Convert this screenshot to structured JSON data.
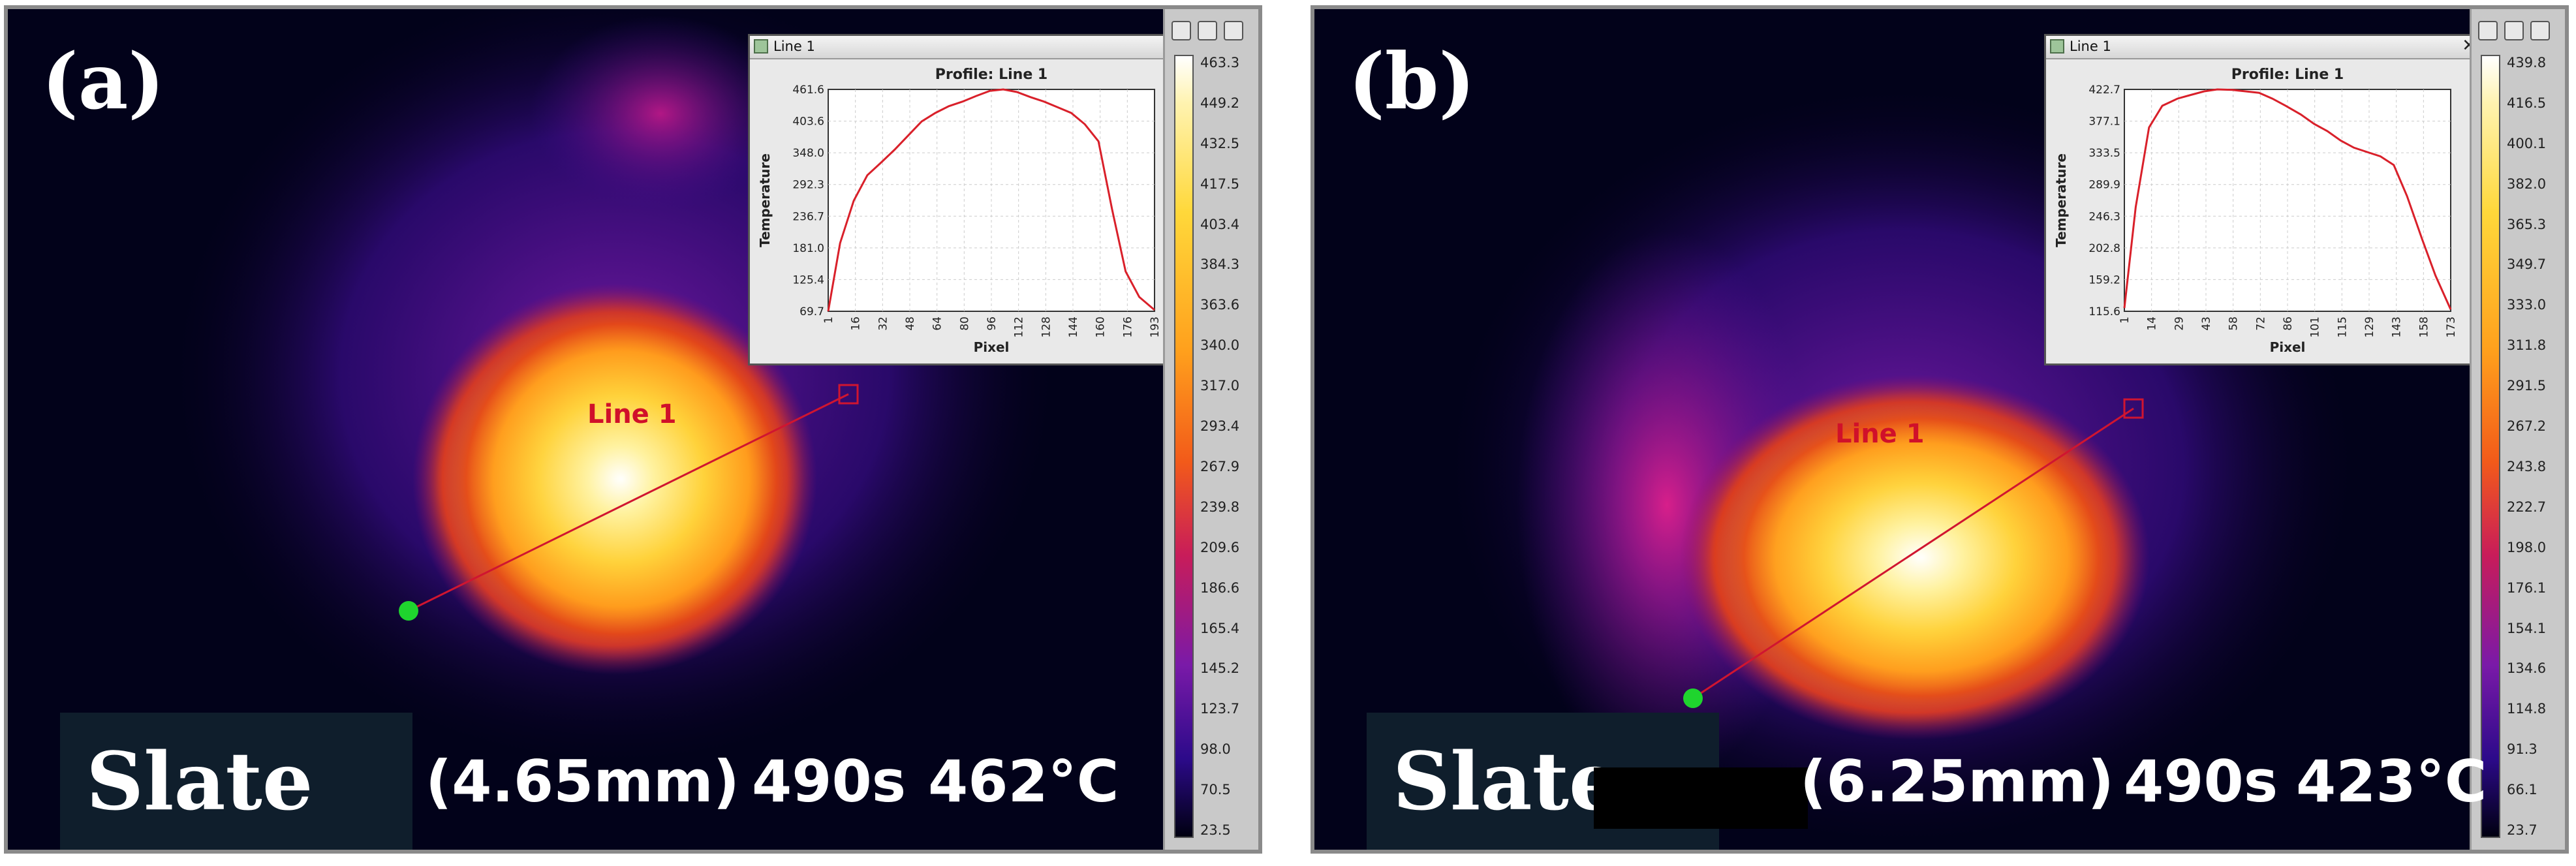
{
  "panels": [
    {
      "letter": "(a)",
      "material": "Slate",
      "thickness": "(4.65mm)",
      "time": "490s",
      "max_temp": "462°C",
      "line_label": "Line 1",
      "popup": {
        "window_title": "Line 1",
        "icon": "profile-window-icon",
        "close_glyph": "✕"
      },
      "colorbar_ticks": [
        "463.3",
        "449.2",
        "432.5",
        "417.5",
        "403.4",
        "384.3",
        "363.6",
        "340.0",
        "317.0",
        "293.4",
        "267.9",
        "239.8",
        "209.6",
        "186.6",
        "165.4",
        "145.2",
        "123.7",
        "98.0",
        "70.5",
        "23.5"
      ],
      "chart_data": {
        "type": "line",
        "title": "Profile: Line 1",
        "xlabel": "Pixel",
        "ylabel": "Temperature",
        "x_ticks": [
          "1",
          "16",
          "32",
          "48",
          "64",
          "80",
          "96",
          "112",
          "128",
          "144",
          "160",
          "176",
          "193"
        ],
        "y_ticks": [
          "69.7",
          "125.4",
          "181.0",
          "236.7",
          "292.3",
          "348.0",
          "403.6",
          "461.6"
        ],
        "xlim": [
          1,
          193
        ],
        "ylim": [
          69.7,
          461.6
        ],
        "grid": true,
        "series": [
          {
            "color": "#d9202a",
            "x": [
              1,
              8,
              16,
              24,
              32,
              40,
              48,
              56,
              64,
              72,
              80,
              88,
              96,
              104,
              112,
              120,
              128,
              136,
              144,
              152,
              160,
              168,
              176,
              184,
              193
            ],
            "y": [
              69.7,
              190,
              265,
              310,
              332,
              355,
              380,
              405,
              420,
              432,
              440,
              450,
              459,
              461.6,
              457,
              448,
              440,
              430,
              420,
              400,
              370,
              250,
              140,
              95,
              72
            ]
          }
        ]
      }
    },
    {
      "letter": "(b)",
      "material": "Slate",
      "thickness": "(6.25mm)",
      "time": "490s",
      "max_temp": "423°C",
      "line_label": "Line 1",
      "popup": {
        "window_title": "Line 1",
        "icon": "profile-window-icon",
        "close_glyph": "✕"
      },
      "colorbar_ticks": [
        "439.8",
        "416.5",
        "400.1",
        "382.0",
        "365.3",
        "349.7",
        "333.0",
        "311.8",
        "291.5",
        "267.2",
        "243.8",
        "222.7",
        "198.0",
        "176.1",
        "154.1",
        "134.6",
        "114.8",
        "91.3",
        "66.1",
        "23.7"
      ],
      "chart_data": {
        "type": "line",
        "title": "Profile: Line 1",
        "xlabel": "Pixel",
        "ylabel": "Temperature",
        "x_ticks": [
          "1",
          "14",
          "29",
          "43",
          "58",
          "72",
          "86",
          "101",
          "115",
          "129",
          "143",
          "158",
          "173"
        ],
        "y_ticks": [
          "115.6",
          "159.2",
          "202.8",
          "246.3",
          "289.9",
          "333.5",
          "377.1",
          "422.7"
        ],
        "xlim": [
          1,
          173
        ],
        "ylim": [
          115.6,
          422.7
        ],
        "grid": true,
        "series": [
          {
            "color": "#d9202a",
            "x": [
              1,
              7,
              14,
              21,
              29,
              36,
              43,
              50,
              58,
              65,
              72,
              79,
              86,
              94,
              101,
              108,
              115,
              122,
              129,
              136,
              143,
              150,
              158,
              165,
              173
            ],
            "y": [
              120,
              260,
              370,
              400,
              410,
              415,
              420,
              422.7,
              422,
              420,
              418,
              410,
              400,
              388,
              375,
              365,
              352,
              342,
              336,
              330,
              318,
              275,
              215,
              165,
              118
            ]
          }
        ]
      }
    }
  ]
}
